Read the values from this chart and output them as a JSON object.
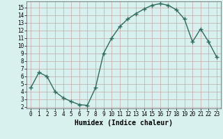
{
  "x": [
    0,
    1,
    2,
    3,
    4,
    5,
    6,
    7,
    8,
    9,
    10,
    11,
    12,
    13,
    14,
    15,
    16,
    17,
    18,
    19,
    20,
    21,
    22,
    23
  ],
  "y": [
    4.5,
    6.5,
    6.0,
    4.0,
    3.2,
    2.7,
    2.3,
    2.2,
    4.5,
    9.0,
    11.0,
    12.5,
    13.5,
    14.2,
    14.8,
    15.3,
    15.5,
    15.3,
    14.7,
    13.5,
    10.5,
    12.2,
    10.5,
    8.5
  ],
  "line_color": "#2e6b5e",
  "marker": "+",
  "marker_size": 4,
  "marker_lw": 1.0,
  "bg_color": "#d8f0ee",
  "grid_color_major": "#c4a8a8",
  "grid_color_minor": "#ddd0d0",
  "xlabel": "Humidex (Indice chaleur)",
  "xlim": [
    -0.5,
    23.5
  ],
  "ylim": [
    1.8,
    15.8
  ],
  "yticks": [
    2,
    3,
    4,
    5,
    6,
    7,
    8,
    9,
    10,
    11,
    12,
    13,
    14,
    15
  ],
  "xticks": [
    0,
    1,
    2,
    3,
    4,
    5,
    6,
    7,
    8,
    9,
    10,
    11,
    12,
    13,
    14,
    15,
    16,
    17,
    18,
    19,
    20,
    21,
    22,
    23
  ],
  "tick_fontsize": 5.5,
  "label_fontsize": 7,
  "line_width": 1.0
}
